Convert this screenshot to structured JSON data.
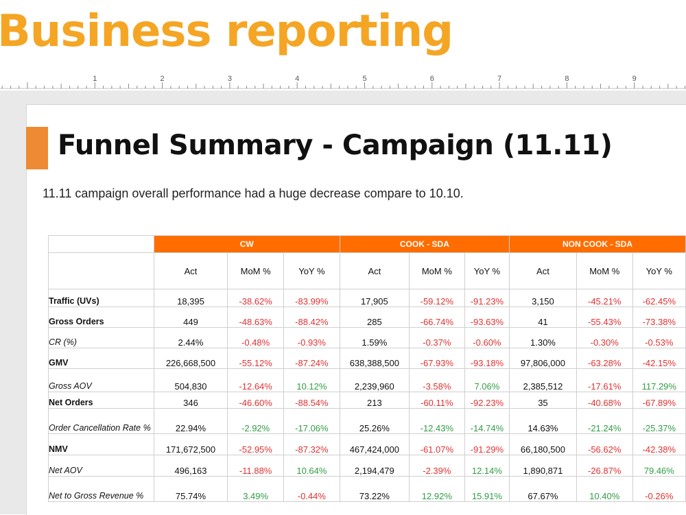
{
  "banner": {
    "title": "Business reporting"
  },
  "ruler": {
    "marks": [
      "1",
      "2",
      "3",
      "4",
      "5",
      "6",
      "7",
      "8",
      "9"
    ]
  },
  "slide": {
    "heading": "Funnel Summary - Campaign (11.11)",
    "subtitle": "11.11 campaign overall performance had a huge decrease compare to 10.10."
  },
  "table": {
    "groups": [
      "CW",
      "COOK - SDA",
      "NON COOK - SDA"
    ],
    "subheaders": [
      "Act",
      "MoM %",
      "YoY %"
    ],
    "rows": [
      {
        "label": "Traffic (UVs)",
        "style": "bold",
        "cells": [
          {
            "v": "18,395"
          },
          {
            "v": "-38.62%",
            "t": "neg"
          },
          {
            "v": "-83.99%",
            "t": "neg"
          },
          {
            "v": "17,905"
          },
          {
            "v": "-59.12%",
            "t": "neg"
          },
          {
            "v": "-91.23%",
            "t": "neg"
          },
          {
            "v": "3,150"
          },
          {
            "v": "-45.21%",
            "t": "neg"
          },
          {
            "v": "-62.45%",
            "t": "neg"
          }
        ]
      },
      {
        "label": "Gross Orders",
        "style": "bold",
        "cells": [
          {
            "v": "449"
          },
          {
            "v": "-48.63%",
            "t": "neg"
          },
          {
            "v": "-88.42%",
            "t": "neg"
          },
          {
            "v": "285"
          },
          {
            "v": "-66.74%",
            "t": "neg"
          },
          {
            "v": "-93.63%",
            "t": "neg"
          },
          {
            "v": "41"
          },
          {
            "v": "-55.43%",
            "t": "neg"
          },
          {
            "v": "-73.38%",
            "t": "neg"
          }
        ]
      },
      {
        "label": "CR (%)",
        "style": "italic",
        "cells": [
          {
            "v": "2.44%"
          },
          {
            "v": "-0.48%",
            "t": "neg"
          },
          {
            "v": "-0.93%",
            "t": "neg"
          },
          {
            "v": "1.59%"
          },
          {
            "v": "-0.37%",
            "t": "neg"
          },
          {
            "v": "-0.60%",
            "t": "neg"
          },
          {
            "v": "1.30%"
          },
          {
            "v": "-0.30%",
            "t": "neg"
          },
          {
            "v": "-0.53%",
            "t": "neg"
          }
        ]
      },
      {
        "label": "GMV",
        "style": "bold",
        "cells": [
          {
            "v": "226,668,500"
          },
          {
            "v": "-55.12%",
            "t": "neg"
          },
          {
            "v": "-87.24%",
            "t": "neg"
          },
          {
            "v": "638,388,500"
          },
          {
            "v": "-67.93%",
            "t": "neg"
          },
          {
            "v": "-93.18%",
            "t": "neg"
          },
          {
            "v": "97,806,000"
          },
          {
            "v": "-63.28%",
            "t": "neg"
          },
          {
            "v": "-42.15%",
            "t": "neg"
          }
        ]
      },
      {
        "label": "Gross AOV",
        "style": "italic",
        "cells": [
          {
            "v": "504,830"
          },
          {
            "v": "-12.64%",
            "t": "neg"
          },
          {
            "v": "10.12%",
            "t": "pos"
          },
          {
            "v": "2,239,960"
          },
          {
            "v": "-3.58%",
            "t": "neg"
          },
          {
            "v": "7.06%",
            "t": "pos"
          },
          {
            "v": "2,385,512"
          },
          {
            "v": "-17.61%",
            "t": "neg"
          },
          {
            "v": "117.29%",
            "t": "pos"
          }
        ]
      },
      {
        "label": "Net Orders",
        "style": "bold",
        "cells": [
          {
            "v": "346"
          },
          {
            "v": "-46.60%",
            "t": "neg"
          },
          {
            "v": "-88.54%",
            "t": "neg"
          },
          {
            "v": "213"
          },
          {
            "v": "-60.11%",
            "t": "neg"
          },
          {
            "v": "-92.23%",
            "t": "neg"
          },
          {
            "v": "35"
          },
          {
            "v": "-40.68%",
            "t": "neg"
          },
          {
            "v": "-67.89%",
            "t": "neg"
          }
        ]
      },
      {
        "label": "Order Cancellation Rate %",
        "style": "italic",
        "cells": [
          {
            "v": "22.94%"
          },
          {
            "v": "-2.92%",
            "t": "pos"
          },
          {
            "v": "-17.06%",
            "t": "pos"
          },
          {
            "v": "25.26%"
          },
          {
            "v": "-12.43%",
            "t": "pos"
          },
          {
            "v": "-14.74%",
            "t": "pos"
          },
          {
            "v": "14.63%"
          },
          {
            "v": "-21.24%",
            "t": "pos"
          },
          {
            "v": "-25.37%",
            "t": "pos"
          }
        ]
      },
      {
        "label": "NMV",
        "style": "bold",
        "cells": [
          {
            "v": "171,672,500"
          },
          {
            "v": "-52.95%",
            "t": "neg"
          },
          {
            "v": "-87.32%",
            "t": "neg"
          },
          {
            "v": "467,424,000"
          },
          {
            "v": "-61.07%",
            "t": "neg"
          },
          {
            "v": "-91.29%",
            "t": "neg"
          },
          {
            "v": "66,180,500"
          },
          {
            "v": "-56.62%",
            "t": "neg"
          },
          {
            "v": "-42.38%",
            "t": "neg"
          }
        ]
      },
      {
        "label": "Net AOV",
        "style": "italic",
        "cells": [
          {
            "v": "496,163"
          },
          {
            "v": "-11.88%",
            "t": "neg"
          },
          {
            "v": "10.64%",
            "t": "pos"
          },
          {
            "v": "2,194,479"
          },
          {
            "v": "-2.39%",
            "t": "neg"
          },
          {
            "v": "12.14%",
            "t": "pos"
          },
          {
            "v": "1,890,871"
          },
          {
            "v": "-26.87%",
            "t": "neg"
          },
          {
            "v": "79.46%",
            "t": "pos"
          }
        ]
      },
      {
        "label": "Net to Gross Revenue %",
        "style": "italic",
        "cells": [
          {
            "v": "75.74%"
          },
          {
            "v": "3.49%",
            "t": "pos"
          },
          {
            "v": "-0.44%",
            "t": "neg"
          },
          {
            "v": "73.22%"
          },
          {
            "v": "12.92%",
            "t": "pos"
          },
          {
            "v": "15.91%",
            "t": "pos"
          },
          {
            "v": "67.67%"
          },
          {
            "v": "10.40%",
            "t": "pos"
          },
          {
            "v": "-0.26%",
            "t": "neg"
          }
        ]
      }
    ]
  },
  "colors": {
    "banner_text": "#f5a524",
    "header_fill": "#ff6d00",
    "accent_bar": "#ee8a34",
    "negative": "#e03131",
    "positive": "#2f9e44"
  }
}
